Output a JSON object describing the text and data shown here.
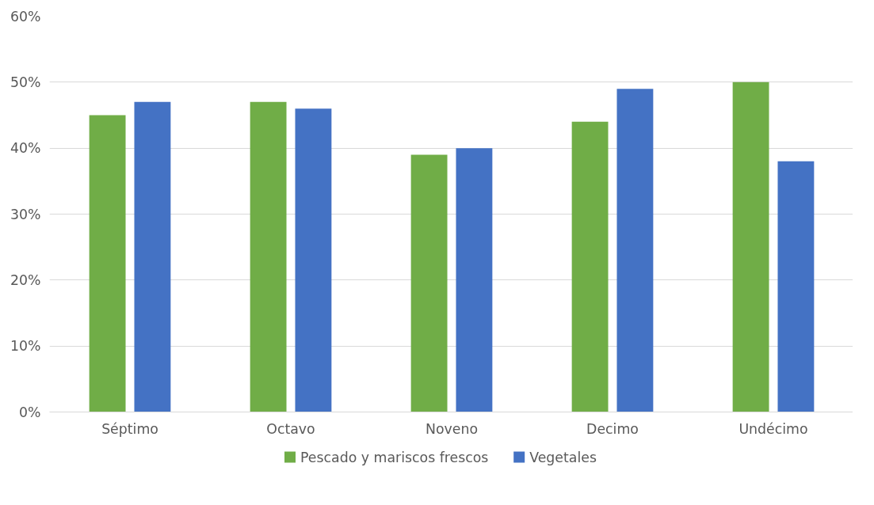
{
  "chart_data": {
    "type": "bar",
    "categories": [
      "Séptimo",
      "Octavo",
      "Noveno",
      "Decimo",
      "Undécimo"
    ],
    "series": [
      {
        "name": "Pescado y mariscos frescos",
        "color": "#70ad47",
        "values": [
          45,
          47,
          39,
          44,
          50
        ]
      },
      {
        "name": "Vegetales",
        "color": "#4472c4",
        "values": [
          47,
          46,
          40,
          49,
          38
        ]
      }
    ],
    "ylim": [
      0,
      60
    ],
    "yticks": [
      {
        "value": 0,
        "label": "0%"
      },
      {
        "value": 10,
        "label": "10%"
      },
      {
        "value": 20,
        "label": "20%"
      },
      {
        "value": 30,
        "label": "30%"
      },
      {
        "value": 40,
        "label": "40%"
      },
      {
        "value": 50,
        "label": "50%"
      },
      {
        "value": 60,
        "label": "60%"
      }
    ],
    "grid": "y",
    "legend": "bottom"
  }
}
